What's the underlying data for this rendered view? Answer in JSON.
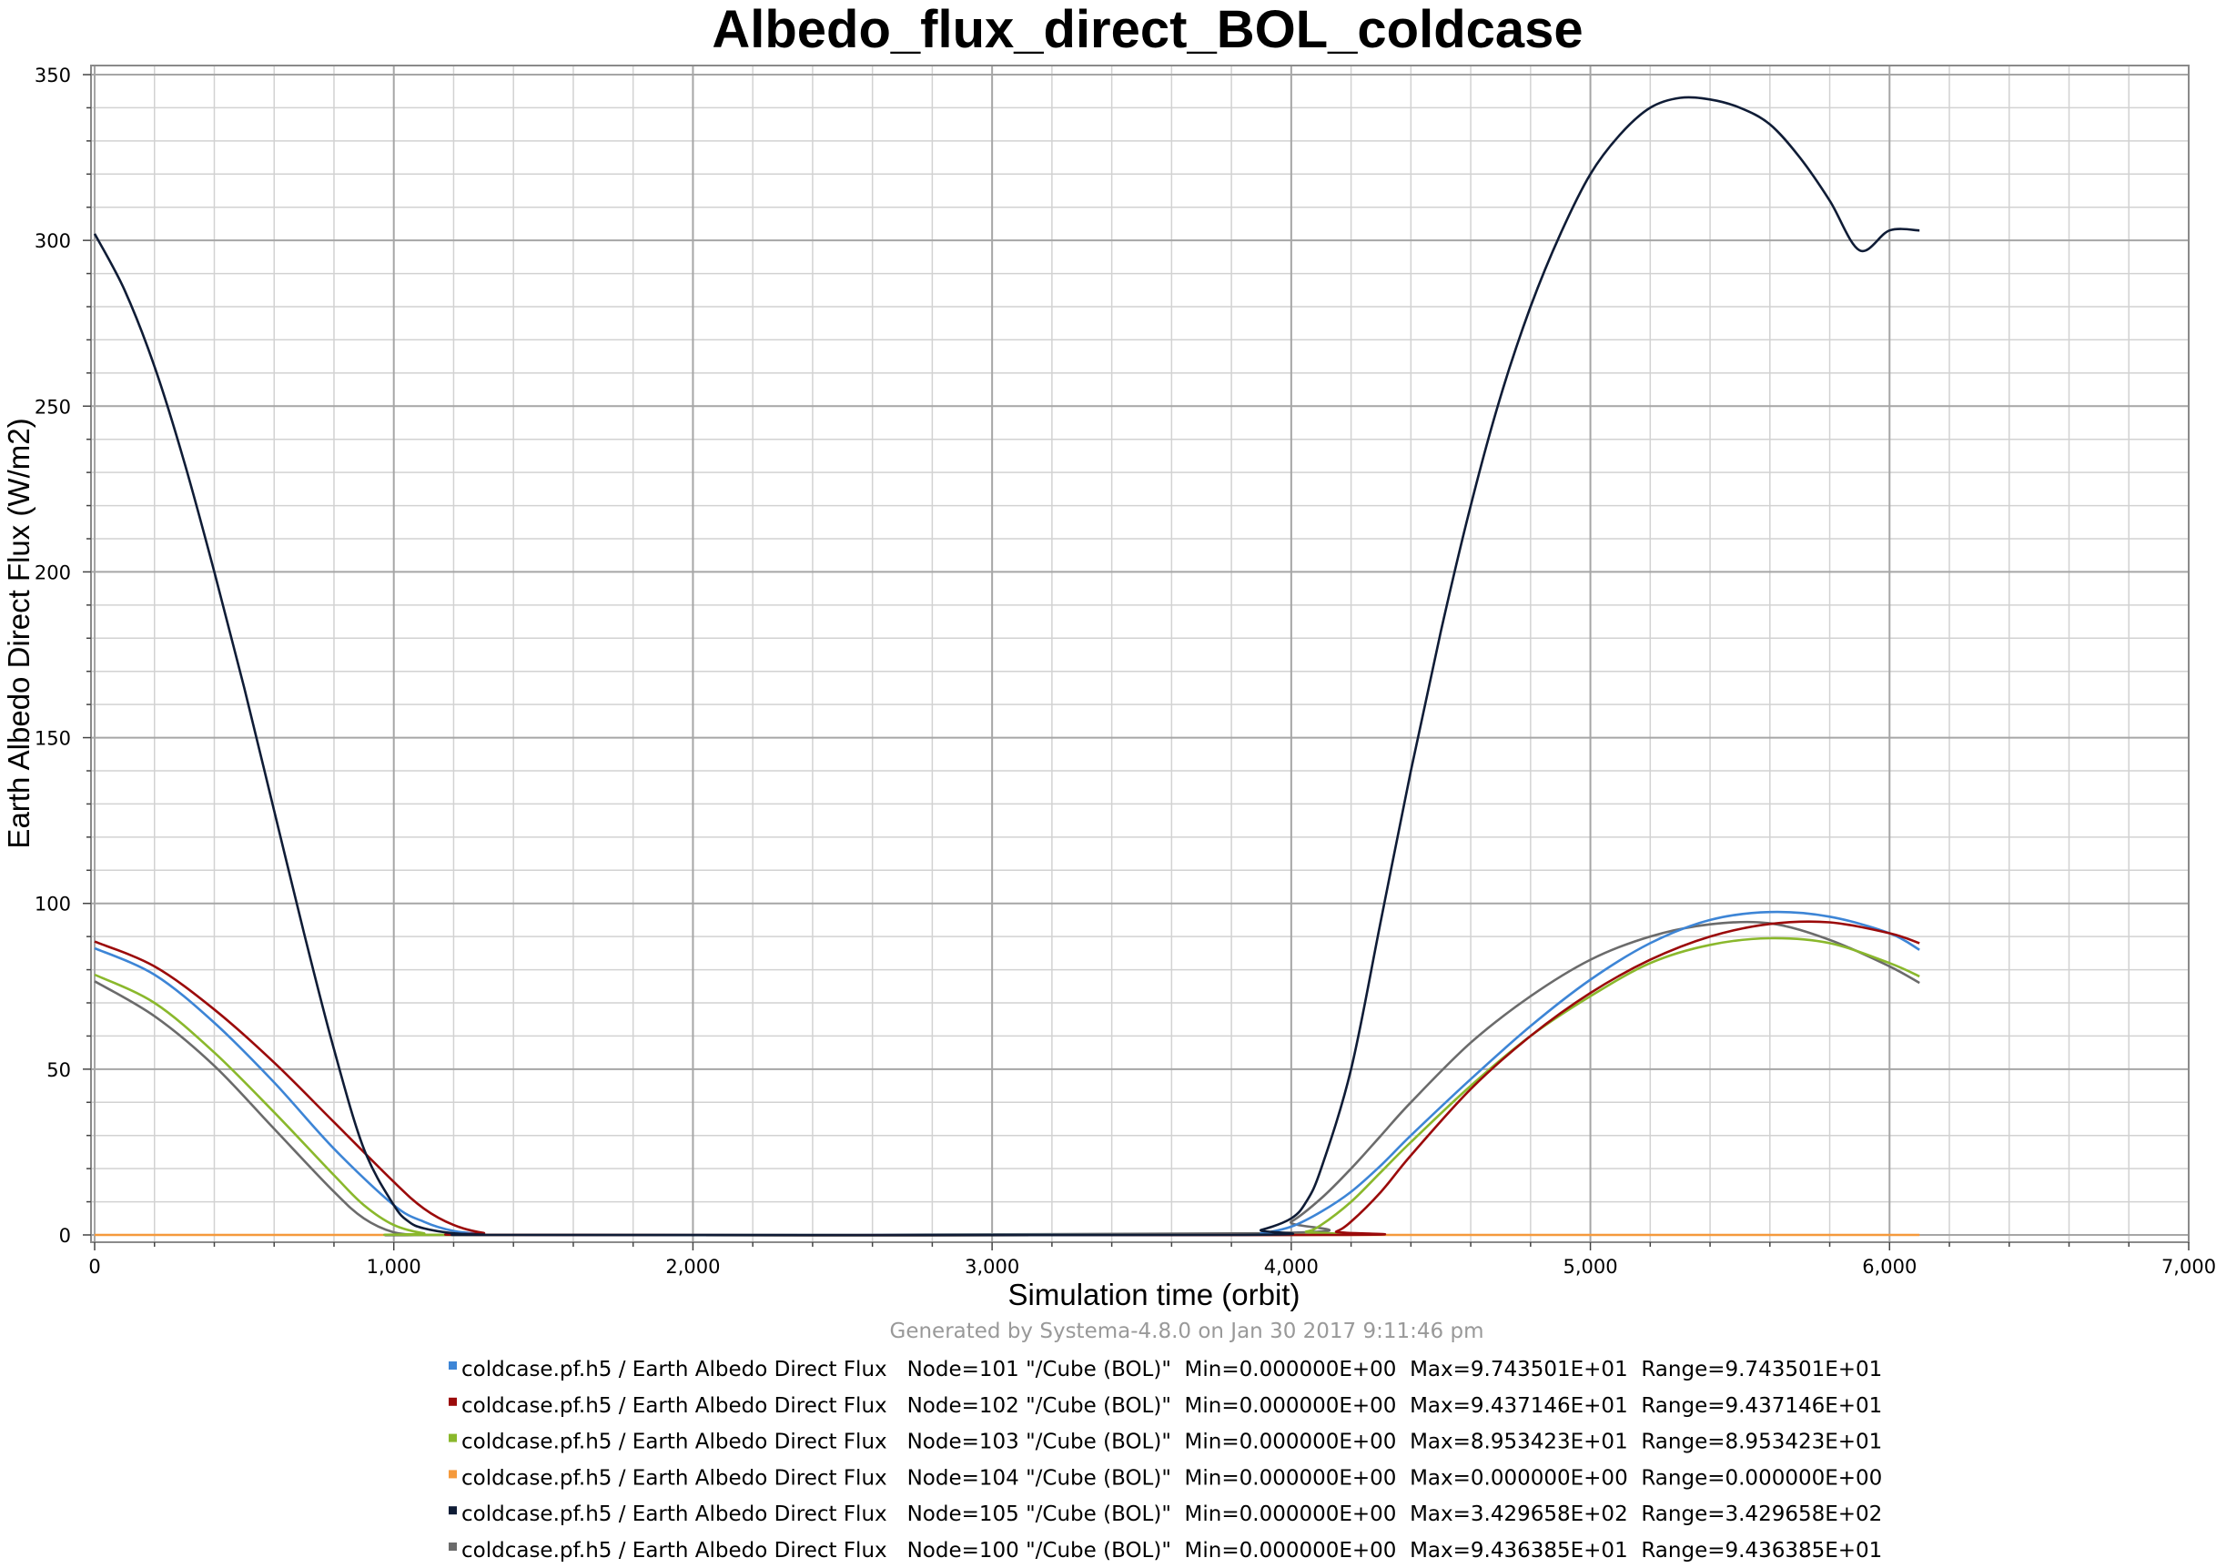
{
  "chart_data": {
    "type": "line",
    "title": "Albedo_flux_direct_BOL_coldcase",
    "xlabel": "Simulation time (orbit)",
    "ylabel": "Earth Albedo Direct Flux (W/m2)",
    "xlim": [
      0,
      7000
    ],
    "ylim": [
      0,
      350
    ],
    "x_ticks": [
      "0",
      "1,000",
      "2,000",
      "3,000",
      "4,000",
      "5,000",
      "6,000",
      "7,000"
    ],
    "y_ticks": [
      "0",
      "50",
      "100",
      "150",
      "200",
      "250",
      "300",
      "350"
    ],
    "grid": true,
    "legend_position": "bottom",
    "footer": "Generated by Systema-4.8.0 on Jan 30 2017 9:11:46 pm",
    "series": [
      {
        "name": "coldcase.pf.h5 / Earth Albedo Direct Flux   Node=101 \"/Cube (BOL)\"  Min=0.000000E+00  Max=9.743501E+01  Range=9.743501E+01",
        "color": "#3d85d6",
        "x": [
          0,
          200,
          400,
          600,
          800,
          1000,
          1100,
          1200,
          1300,
          1400,
          3800,
          3900,
          4000,
          4100,
          4200,
          4300,
          4400,
          4600,
          4800,
          5000,
          5200,
          5400,
          5600,
          5800,
          6000,
          6100
        ],
        "y": [
          86.5,
          78.5,
          64,
          46,
          26,
          9,
          4,
          1.2,
          0.3,
          0,
          0,
          0.5,
          2.5,
          7,
          13,
          21,
          30,
          47,
          63,
          77,
          88,
          95,
          97.4,
          96,
          91,
          86
        ]
      },
      {
        "name": "coldcase.pf.h5 / Earth Albedo Direct Flux   Node=102 \"/Cube (BOL)\"  Min=0.000000E+00  Max=9.437146E+01  Range=9.437146E+01",
        "color": "#9b0a0a",
        "x": [
          0,
          200,
          400,
          600,
          800,
          1000,
          1100,
          1200,
          1300,
          1400,
          4100,
          4150,
          4200,
          4300,
          4400,
          4600,
          4800,
          5000,
          5200,
          5400,
          5600,
          5800,
          6000,
          6100
        ],
        "y": [
          88.5,
          81,
          68,
          52,
          34,
          16,
          8,
          3,
          0.6,
          0,
          0,
          1,
          4,
          13,
          24,
          44,
          60,
          73,
          83,
          90,
          93.8,
          94.3,
          91,
          88
        ]
      },
      {
        "name": "coldcase.pf.h5 / Earth Albedo Direct Flux   Node=103 \"/Cube (BOL)\"  Min=0.000000E+00  Max=8.953423E+01  Range=8.953423E+01",
        "color": "#8ab82c",
        "x": [
          0,
          200,
          400,
          600,
          800,
          900,
          1000,
          1100,
          1200,
          3950,
          4050,
          4100,
          4200,
          4300,
          4400,
          4600,
          4800,
          5000,
          5200,
          5400,
          5600,
          5800,
          6000,
          6100
        ],
        "y": [
          78.5,
          70,
          55,
          37,
          18,
          9,
          3,
          0.5,
          0,
          0,
          1,
          3,
          10,
          19,
          28,
          45,
          60,
          72,
          82,
          87.5,
          89.5,
          88,
          82,
          78
        ]
      },
      {
        "name": "coldcase.pf.h5 / Earth Albedo Direct Flux   Node=104 \"/Cube (BOL)\"  Min=0.000000E+00  Max=0.000000E+00  Range=0.000000E+00",
        "color": "#f59a3c",
        "x": [
          0,
          6100
        ],
        "y": [
          0,
          0
        ]
      },
      {
        "name": "coldcase.pf.h5 / Earth Albedo Direct Flux   Node=105 \"/Cube (BOL)\"  Min=0.000000E+00  Max=3.429658E+02  Range=3.429658E+02",
        "color": "#0f1c36",
        "x": [
          0,
          100,
          200,
          300,
          400,
          500,
          600,
          700,
          800,
          900,
          1000,
          1050,
          1100,
          1200,
          1300,
          1400,
          3800,
          3900,
          4000,
          4050,
          4100,
          4200,
          4300,
          4400,
          4500,
          4600,
          4700,
          4800,
          4900,
          5000,
          5100,
          5200,
          5300,
          5400,
          5500,
          5600,
          5700,
          5800,
          5900,
          6000,
          6100
        ],
        "y": [
          302,
          285,
          262,
          233,
          200,
          165,
          128,
          91,
          56,
          26,
          9,
          4,
          2,
          0.5,
          0.1,
          0,
          0,
          1.5,
          5,
          10,
          20,
          50,
          95,
          140,
          182,
          220,
          253,
          280,
          302,
          320,
          332,
          340,
          343,
          342.5,
          340,
          335,
          325,
          312,
          297,
          303,
          303
        ]
      },
      {
        "name": "coldcase.pf.h5 / Earth Albedo Direct Flux   Node=100 \"/Cube (BOL)\"  Min=0.000000E+00  Max=9.436385E+01  Range=9.436385E+01",
        "color": "#6b6b6b",
        "x": [
          0,
          200,
          400,
          600,
          800,
          900,
          1000,
          1100,
          1200,
          3900,
          4000,
          4100,
          4200,
          4300,
          4400,
          4600,
          4800,
          5000,
          5200,
          5400,
          5600,
          5800,
          6000,
          6100
        ],
        "y": [
          76.5,
          66,
          51,
          32,
          13,
          5,
          0.8,
          0,
          0,
          0.5,
          4,
          11,
          20,
          30,
          40,
          58,
          72,
          83,
          90,
          93.7,
          94,
          89,
          81,
          76
        ]
      }
    ]
  }
}
